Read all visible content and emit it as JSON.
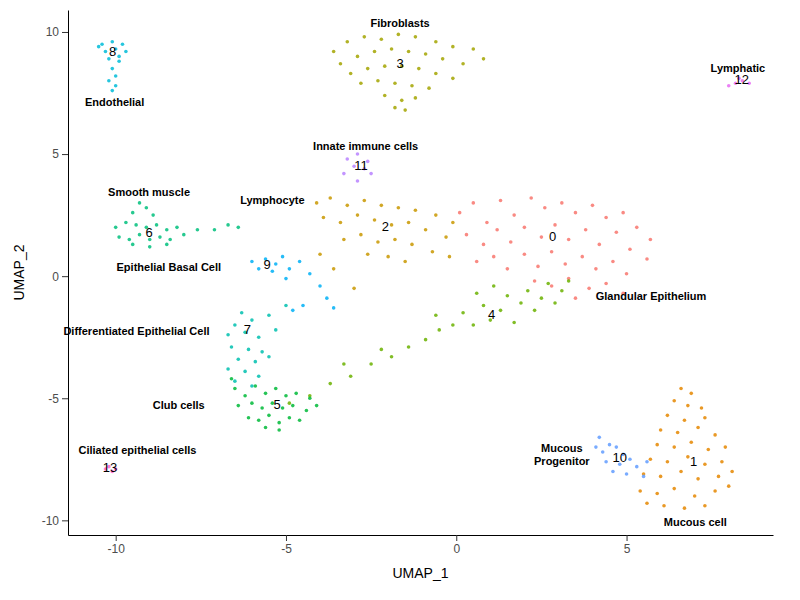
{
  "chart_data": {
    "type": "scatter",
    "xlabel": "UMAP_1",
    "ylabel": "UMAP_2",
    "xlim": [
      -11.4,
      9.3
    ],
    "ylim": [
      -10.6,
      10.9
    ],
    "xticks": [
      -10,
      -5,
      0,
      5
    ],
    "yticks": [
      -10,
      -5,
      0,
      5,
      10
    ],
    "grid": false,
    "series": [
      {
        "name": "0",
        "color": "#F8766D",
        "center": [
          2.83,
          1.6
        ],
        "x": [
          0.1,
          0.5,
          0.9,
          1.3,
          1.7,
          2.2,
          2.6,
          3.1,
          3.5,
          4.0,
          4.4,
          4.9,
          5.3,
          5.7,
          0.3,
          0.8,
          1.2,
          1.6,
          2.0,
          2.5,
          2.9,
          3.3,
          3.8,
          4.2,
          4.7,
          5.1,
          5.6,
          0.6,
          1.1,
          1.5,
          2.0,
          2.4,
          2.8,
          3.2,
          3.7,
          4.1,
          4.6,
          5.0,
          2.3,
          2.8,
          3.3,
          3.9,
          4.4,
          4.9,
          3.5
        ],
        "y": [
          2.6,
          3.0,
          2.2,
          3.1,
          2.5,
          3.2,
          2.8,
          3.0,
          2.6,
          2.9,
          2.4,
          2.6,
          2.0,
          1.5,
          1.7,
          1.3,
          1.9,
          1.4,
          2.0,
          1.6,
          2.1,
          1.5,
          1.9,
          1.3,
          1.8,
          1.1,
          0.7,
          0.6,
          0.8,
          0.3,
          0.9,
          0.4,
          1.0,
          0.5,
          0.8,
          0.3,
          0.6,
          0.1,
          -0.2,
          -0.4,
          -0.1,
          -0.5,
          -0.3,
          -0.7,
          -0.9
        ]
      },
      {
        "name": "1",
        "color": "#E58700",
        "center": [
          6.97,
          -7.62
        ],
        "x": [
          6.6,
          6.9,
          6.4,
          6.8,
          7.2,
          6.2,
          6.7,
          7.3,
          6.0,
          6.5,
          7.1,
          7.6,
          5.9,
          6.4,
          6.9,
          7.4,
          7.9,
          5.7,
          6.2,
          6.8,
          7.3,
          7.8,
          5.5,
          6.0,
          6.6,
          7.1,
          7.7,
          8.1,
          5.4,
          5.9,
          6.4,
          7.0,
          7.6,
          6.1,
          6.7,
          7.3,
          5.6,
          8.0
        ],
        "y": [
          -4.6,
          -4.8,
          -5.1,
          -5.3,
          -5.4,
          -5.7,
          -5.9,
          -5.8,
          -6.3,
          -6.4,
          -6.2,
          -6.5,
          -6.9,
          -7.0,
          -6.8,
          -7.1,
          -7.0,
          -7.5,
          -7.6,
          -7.4,
          -7.7,
          -7.6,
          -8.1,
          -8.2,
          -8.0,
          -8.3,
          -8.2,
          -8.0,
          -8.8,
          -8.9,
          -8.7,
          -9.0,
          -8.8,
          -9.4,
          -9.5,
          -9.4,
          -9.3,
          -8.6
        ]
      },
      {
        "name": "2",
        "color": "#C99800",
        "center": [
          -2.08,
          2.01
        ],
        "x": [
          -4.1,
          -3.7,
          -3.2,
          -2.7,
          -2.2,
          -1.7,
          -1.2,
          -0.6,
          -0.1,
          -3.9,
          -3.4,
          -2.9,
          -2.4,
          -1.9,
          -1.4,
          -0.9,
          -0.3,
          -3.3,
          -2.8,
          -2.3,
          -1.8,
          -1.3,
          -0.7,
          -0.2,
          -2.6,
          -2.0,
          -1.5,
          -3.6,
          -3.0,
          -4.0
        ],
        "y": [
          3.0,
          3.2,
          2.9,
          3.1,
          2.9,
          2.8,
          2.7,
          2.5,
          2.2,
          2.4,
          2.2,
          2.5,
          2.3,
          2.1,
          2.2,
          1.9,
          1.6,
          1.5,
          1.7,
          1.4,
          1.5,
          1.3,
          1.0,
          0.8,
          0.9,
          0.8,
          0.6,
          0.3,
          -0.5,
          0.9
        ]
      },
      {
        "name": "3",
        "color": "#A3A500",
        "center": [
          -1.65,
          8.65
        ],
        "x": [
          -3.6,
          -3.2,
          -2.7,
          -2.2,
          -1.7,
          -1.2,
          -0.6,
          -0.1,
          0.5,
          0.8,
          -3.4,
          -2.9,
          -2.4,
          -1.9,
          -1.4,
          -0.9,
          -0.4,
          0.2,
          -3.1,
          -2.6,
          -2.1,
          -1.6,
          -1.1,
          -0.6,
          -0.1,
          -2.8,
          -2.3,
          -1.8,
          -1.3,
          -0.8,
          -2.1,
          -1.6,
          -1.2,
          -1.5,
          -1.8
        ],
        "y": [
          9.2,
          9.6,
          9.8,
          9.7,
          9.9,
          9.8,
          9.6,
          9.4,
          9.3,
          8.9,
          8.7,
          9.0,
          9.2,
          9.3,
          9.2,
          9.1,
          8.9,
          8.7,
          8.3,
          8.5,
          8.6,
          8.6,
          8.5,
          8.3,
          8.1,
          7.9,
          8.0,
          7.9,
          7.8,
          7.7,
          7.4,
          7.2,
          7.3,
          6.8,
          6.9
        ]
      },
      {
        "name": "4",
        "color": "#6BB100",
        "center": [
          1.04,
          -1.6
        ],
        "x": [
          -4.9,
          -4.3,
          -3.7,
          -3.1,
          -2.5,
          -1.9,
          -1.4,
          -0.9,
          -0.5,
          -0.1,
          0.2,
          0.5,
          0.8,
          1.0,
          1.3,
          1.5,
          1.7,
          1.9,
          2.1,
          2.3,
          2.5,
          2.7,
          2.9,
          3.1,
          3.3,
          0.6,
          -0.6,
          -2.2,
          -3.3,
          1.1
        ],
        "y": [
          -5.2,
          -4.9,
          -4.4,
          -4.1,
          -3.6,
          -3.3,
          -2.9,
          -2.6,
          -2.2,
          -2.0,
          -1.5,
          -2.0,
          -1.2,
          -1.8,
          -1.4,
          -0.8,
          -1.9,
          -1.1,
          -0.6,
          -1.4,
          -0.9,
          -0.3,
          -1.1,
          -0.6,
          -0.2,
          -0.7,
          -1.6,
          -3.0,
          -3.6,
          -0.4
        ]
      },
      {
        "name": "5",
        "color": "#00BA38",
        "center": [
          -5.26,
          -5.29
        ],
        "x": [
          -6.5,
          -6.2,
          -5.9,
          -5.6,
          -5.3,
          -5.0,
          -4.7,
          -4.3,
          -6.4,
          -6.0,
          -5.7,
          -5.4,
          -5.1,
          -4.8,
          -4.4,
          -4.1,
          -6.1,
          -5.8,
          -5.5,
          -5.2,
          -4.9,
          -4.6,
          -5.6,
          -5.2,
          -6.6
        ],
        "y": [
          -4.6,
          -4.9,
          -4.5,
          -4.8,
          -4.6,
          -4.9,
          -4.8,
          -5.0,
          -5.3,
          -5.2,
          -5.4,
          -5.2,
          -5.4,
          -5.3,
          -5.5,
          -5.3,
          -5.8,
          -5.9,
          -5.7,
          -6.0,
          -5.8,
          -5.9,
          -6.2,
          -6.3,
          -4.2
        ]
      },
      {
        "name": "6",
        "color": "#00BF7D",
        "center": [
          -9.02,
          1.76
        ],
        "x": [
          -9.3,
          -9.1,
          -9.5,
          -8.9,
          -10.0,
          -9.7,
          -9.4,
          -9.1,
          -8.8,
          -8.5,
          -8.2,
          -9.9,
          -9.6,
          -9.3,
          -9.0,
          -8.7,
          -8.4,
          -8.0,
          -9.5,
          -9.0,
          -8.5,
          -7.6,
          -7.1,
          -6.7,
          -6.4
        ],
        "y": [
          3.0,
          2.8,
          2.6,
          2.5,
          2.0,
          2.2,
          2.1,
          2.0,
          2.1,
          1.9,
          2.0,
          1.6,
          1.5,
          1.7,
          1.5,
          1.6,
          1.5,
          1.7,
          1.3,
          1.2,
          1.3,
          1.9,
          1.9,
          2.1,
          2.0
        ]
      },
      {
        "name": "7",
        "color": "#00C0AF",
        "center": [
          -6.13,
          -2.21
        ],
        "x": [
          -6.3,
          -6.0,
          -6.5,
          -5.5,
          -6.7,
          -6.2,
          -5.8,
          -5.3,
          -6.6,
          -6.1,
          -5.7,
          -6.4,
          -5.9,
          -5.5,
          -6.7,
          -6.2,
          -5.8,
          -6.5,
          -6.0,
          -5.0
        ],
        "y": [
          -1.5,
          -1.8,
          -2.0,
          -1.6,
          -2.4,
          -2.3,
          -2.5,
          -2.2,
          -2.9,
          -3.0,
          -3.1,
          -3.4,
          -3.5,
          -3.3,
          -3.8,
          -3.9,
          -4.1,
          -4.3,
          -4.5,
          -1.2
        ]
      },
      {
        "name": "8",
        "color": "#00BCD8",
        "center": [
          -10.09,
          9.14
        ],
        "x": [
          -10.4,
          -10.1,
          -9.8,
          -10.3,
          -10.0,
          -9.7,
          -10.2,
          -9.9,
          -10.1,
          -10.0,
          -10.2,
          -10.0,
          -10.1,
          -9.9,
          -10.5
        ],
        "y": [
          9.5,
          9.6,
          9.5,
          9.2,
          9.3,
          9.2,
          8.9,
          8.8,
          8.5,
          8.2,
          8.0,
          7.8,
          7.6,
          9.0,
          9.4
        ]
      },
      {
        "name": "9",
        "color": "#00B0F6",
        "center": [
          -5.55,
          0.45
        ],
        "x": [
          -6.0,
          -5.8,
          -5.6,
          -5.4,
          -5.3,
          -5.1,
          -4.9,
          -4.6,
          -4.3,
          -4.0,
          -3.8,
          -3.6,
          -5.0,
          -4.5,
          -4.8
        ],
        "y": [
          0.6,
          0.3,
          0.7,
          0.2,
          0.5,
          0.8,
          0.3,
          0.6,
          0.1,
          -0.4,
          -0.9,
          -1.3,
          -0.1,
          -1.2,
          -1.4
        ]
      },
      {
        "name": "10",
        "color": "#619CFF",
        "center": [
          4.8,
          -7.46
        ],
        "x": [
          4.2,
          4.5,
          4.3,
          4.7,
          4.9,
          4.4,
          4.8,
          5.1,
          5.3,
          4.6,
          5.0,
          5.5,
          5.6,
          4.1
        ],
        "y": [
          -6.6,
          -6.9,
          -7.2,
          -7.0,
          -7.3,
          -7.6,
          -7.7,
          -7.5,
          -7.8,
          -8.0,
          -8.1,
          -8.2,
          -7.6,
          -7.0
        ]
      },
      {
        "name": "11",
        "color": "#B983FF",
        "center": [
          -2.8,
          4.47
        ],
        "x": [
          -3.2,
          -2.9,
          -2.6,
          -3.0,
          -2.7,
          -2.5,
          -3.3,
          -2.9
        ],
        "y": [
          4.8,
          5.0,
          4.7,
          4.5,
          4.4,
          4.2,
          4.2,
          3.9
        ]
      },
      {
        "name": "12",
        "color": "#E76BF3",
        "center": [
          8.38,
          7.99
        ],
        "x": [
          8.0,
          8.2,
          8.4,
          8.6,
          8.3
        ],
        "y": [
          7.8,
          7.9,
          8.0,
          7.9,
          8.1
        ]
      },
      {
        "name": "13",
        "color": "#FD61D1",
        "center": [
          -10.17,
          -7.88
        ],
        "x": [
          -10.3,
          -10.1,
          -10.2,
          -10.0
        ],
        "y": [
          -7.9,
          -8.0,
          -7.8,
          -7.9
        ]
      }
    ],
    "annotations": [
      {
        "text": "Fibroblasts",
        "x": -1.65,
        "y": 10.37
      },
      {
        "text": "Endothelial",
        "x": -10.03,
        "y": 7.13
      },
      {
        "text": "Lymphatic",
        "x": 8.27,
        "y": 8.52
      },
      {
        "text": "Innate immune cells",
        "x": -2.66,
        "y": 5.33
      },
      {
        "text": "Smooth muscle",
        "x": -9.02,
        "y": 3.44
      },
      {
        "text": "Lymphocyte",
        "x": -5.4,
        "y": 3.1
      },
      {
        "text": "Epithelial Basal Cell",
        "x": -8.44,
        "y": 0.37
      },
      {
        "text": "Glandular Epithelium",
        "x": 5.72,
        "y": -0.82
      },
      {
        "text": "Differentiated Epithelial Cell",
        "x": -9.39,
        "y": -2.25
      },
      {
        "text": "Club cells",
        "x": -8.15,
        "y": -5.29
      },
      {
        "text": "Ciliated epithelial cells",
        "x": -9.36,
        "y": -7.13
      },
      {
        "text": "Mucous\nProgenitor",
        "x": 3.1,
        "y": -7.3
      },
      {
        "text": "Mucous cell",
        "x": 7.02,
        "y": -10.08
      }
    ]
  }
}
